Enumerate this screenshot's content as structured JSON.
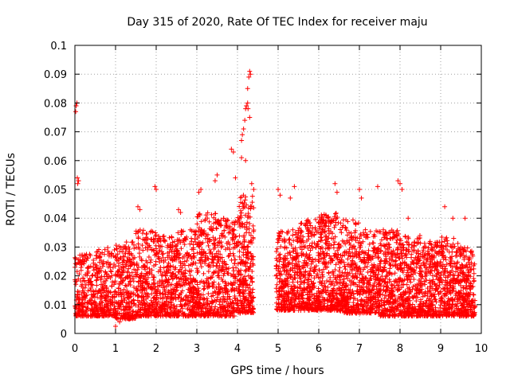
{
  "chart_data": {
    "type": "scatter",
    "title": "Day 315 of 2020, Rate Of TEC Index for receiver maju",
    "xlabel": "GPS time / hours",
    "ylabel": "ROTI / TECUs",
    "xlim": [
      0,
      10
    ],
    "ylim": [
      0,
      0.1
    ],
    "x_ticks": [
      0,
      1,
      2,
      3,
      4,
      5,
      6,
      7,
      8,
      9,
      10
    ],
    "y_ticks": [
      0,
      0.01,
      0.02,
      0.03,
      0.04,
      0.05,
      0.06,
      0.07,
      0.08,
      0.09,
      0.1
    ],
    "x_tick_labels": [
      "0",
      "1",
      "2",
      "3",
      "4",
      "5",
      "6",
      "7",
      "8",
      "9",
      "10"
    ],
    "y_tick_labels": [
      "0",
      "0.01",
      "0.02",
      "0.03",
      "0.04",
      "0.05",
      "0.06",
      "0.07",
      "0.08",
      "0.09",
      "0.1"
    ],
    "grid": true,
    "marker": "+",
    "color": "#ff0000",
    "data_gaps_hours": [
      [
        4.4,
        4.95
      ]
    ],
    "series": [
      {
        "name": "ROTI",
        "points": [
          [
            0.02,
            0.077
          ],
          [
            0.03,
            0.079
          ],
          [
            0.05,
            0.08
          ],
          [
            0.04,
            0.024
          ],
          [
            0.06,
            0.054
          ],
          [
            0.07,
            0.052
          ],
          [
            0.09,
            0.053
          ],
          [
            1.0,
            0.0025
          ],
          [
            1.1,
            0.004
          ],
          [
            1.55,
            0.044
          ],
          [
            1.6,
            0.043
          ],
          [
            1.97,
            0.051
          ],
          [
            2.0,
            0.05
          ],
          [
            2.6,
            0.042
          ],
          [
            2.55,
            0.043
          ],
          [
            3.05,
            0.049
          ],
          [
            3.1,
            0.05
          ],
          [
            3.5,
            0.055
          ],
          [
            3.45,
            0.053
          ],
          [
            3.85,
            0.064
          ],
          [
            3.9,
            0.063
          ],
          [
            3.95,
            0.054
          ],
          [
            4.1,
            0.067
          ],
          [
            4.12,
            0.069
          ],
          [
            4.15,
            0.071
          ],
          [
            4.2,
            0.078
          ],
          [
            4.22,
            0.079
          ],
          [
            4.25,
            0.08
          ],
          [
            4.18,
            0.074
          ],
          [
            4.3,
            0.075
          ],
          [
            4.1,
            0.061
          ],
          [
            4.2,
            0.06
          ],
          [
            4.25,
            0.085
          ],
          [
            4.28,
            0.089
          ],
          [
            4.3,
            0.091
          ],
          [
            4.32,
            0.09
          ],
          [
            4.26,
            0.078
          ],
          [
            4.35,
            0.052
          ],
          [
            4.4,
            0.05
          ],
          [
            5.0,
            0.05
          ],
          [
            5.05,
            0.048
          ],
          [
            5.3,
            0.047
          ],
          [
            5.4,
            0.051
          ],
          [
            6.4,
            0.052
          ],
          [
            6.45,
            0.049
          ],
          [
            7.0,
            0.05
          ],
          [
            7.05,
            0.047
          ],
          [
            7.45,
            0.051
          ],
          [
            7.95,
            0.053
          ],
          [
            8.0,
            0.052
          ],
          [
            8.05,
            0.05
          ],
          [
            8.2,
            0.04
          ],
          [
            9.1,
            0.044
          ],
          [
            9.3,
            0.04
          ],
          [
            9.6,
            0.04
          ]
        ],
        "bands": [
          {
            "x_range": [
              0.0,
              0.5
            ],
            "y_range": [
              0.006,
              0.028
            ],
            "count": 220
          },
          {
            "x_range": [
              0.5,
              1.0
            ],
            "y_range": [
              0.006,
              0.03
            ],
            "count": 230
          },
          {
            "x_range": [
              1.0,
              1.5
            ],
            "y_range": [
              0.005,
              0.032
            ],
            "count": 260
          },
          {
            "x_range": [
              1.5,
              2.0
            ],
            "y_range": [
              0.006,
              0.036
            ],
            "count": 270
          },
          {
            "x_range": [
              2.0,
              2.5
            ],
            "y_range": [
              0.006,
              0.034
            ],
            "count": 270
          },
          {
            "x_range": [
              2.5,
              3.0
            ],
            "y_range": [
              0.006,
              0.036
            ],
            "count": 270
          },
          {
            "x_range": [
              3.0,
              3.5
            ],
            "y_range": [
              0.006,
              0.042
            ],
            "count": 280
          },
          {
            "x_range": [
              3.5,
              4.0
            ],
            "y_range": [
              0.006,
              0.04
            ],
            "count": 270
          },
          {
            "x_range": [
              4.0,
              4.4
            ],
            "y_range": [
              0.007,
              0.048
            ],
            "count": 280
          },
          {
            "x_range": [
              4.95,
              5.5
            ],
            "y_range": [
              0.008,
              0.036
            ],
            "count": 300
          },
          {
            "x_range": [
              5.5,
              6.0
            ],
            "y_range": [
              0.008,
              0.04
            ],
            "count": 300
          },
          {
            "x_range": [
              6.0,
              6.5
            ],
            "y_range": [
              0.008,
              0.042
            ],
            "count": 310
          },
          {
            "x_range": [
              6.5,
              7.0
            ],
            "y_range": [
              0.007,
              0.04
            ],
            "count": 300
          },
          {
            "x_range": [
              7.0,
              7.5
            ],
            "y_range": [
              0.007,
              0.036
            ],
            "count": 290
          },
          {
            "x_range": [
              7.5,
              8.0
            ],
            "y_range": [
              0.006,
              0.036
            ],
            "count": 290
          },
          {
            "x_range": [
              8.0,
              8.5
            ],
            "y_range": [
              0.006,
              0.034
            ],
            "count": 290
          },
          {
            "x_range": [
              8.5,
              9.0
            ],
            "y_range": [
              0.006,
              0.032
            ],
            "count": 280
          },
          {
            "x_range": [
              9.0,
              9.5
            ],
            "y_range": [
              0.006,
              0.034
            ],
            "count": 280
          },
          {
            "x_range": [
              9.5,
              9.85
            ],
            "y_range": [
              0.006,
              0.03
            ],
            "count": 200
          }
        ]
      }
    ]
  }
}
